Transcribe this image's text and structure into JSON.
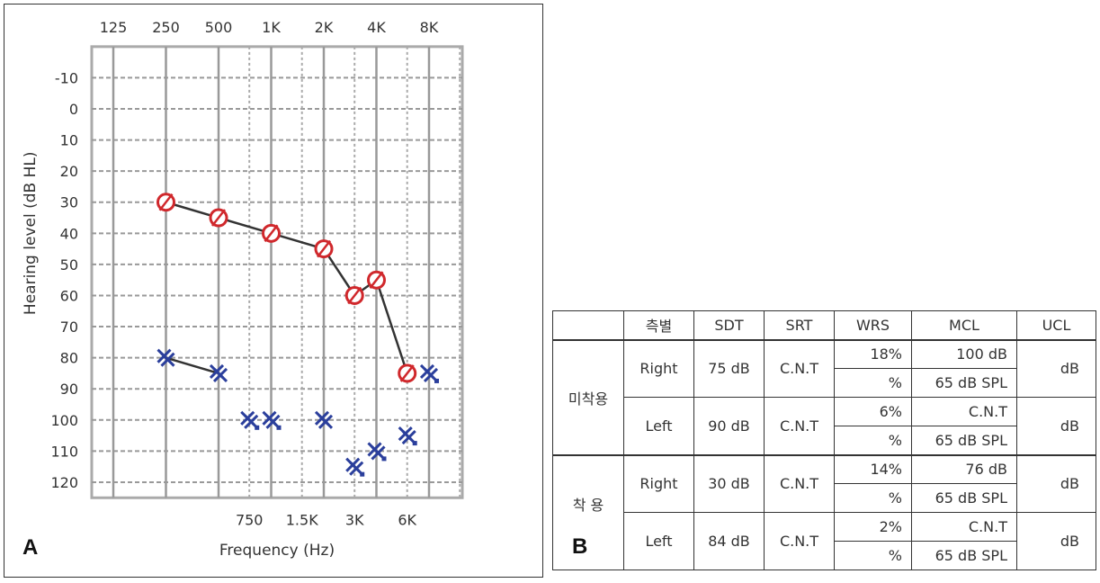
{
  "panel_a_label": "A",
  "panel_b_label": "B",
  "chart_data": {
    "type": "scatter",
    "title": "",
    "xlabel": "Frequency (Hz)",
    "ylabel": "Hearing level (dB HL)",
    "x_scale": "log2",
    "y_inverted": true,
    "ylim": [
      -20,
      125
    ],
    "grid": true,
    "top_tick_labels": [
      "125",
      "250",
      "500",
      "1K",
      "2K",
      "4K",
      "8K"
    ],
    "top_ticks_hz": [
      125,
      250,
      500,
      1000,
      2000,
      4000,
      8000
    ],
    "bottom_tick_labels": [
      "750",
      "1.5K",
      "3K",
      "6K"
    ],
    "bottom_ticks_hz": [
      750,
      1500,
      3000,
      6000
    ],
    "y_tick_labels": [
      "-10",
      "0",
      "10",
      "20",
      "30",
      "40",
      "50",
      "60",
      "70",
      "80",
      "90",
      "100",
      "110",
      "120"
    ],
    "y_ticks": [
      -10,
      0,
      10,
      20,
      30,
      40,
      50,
      60,
      70,
      80,
      90,
      100,
      110,
      120
    ],
    "series": [
      {
        "symbol": "circle-slash",
        "color": "#d0282c",
        "connected": true,
        "points": [
          [
            250,
            30
          ],
          [
            500,
            35
          ],
          [
            1000,
            40
          ],
          [
            2000,
            45
          ],
          [
            3000,
            60
          ],
          [
            4000,
            55
          ],
          [
            6000,
            85
          ]
        ]
      },
      {
        "symbol": "double-x",
        "color": "#2b3f9c",
        "connected_pairs": [
          [
            250,
            500
          ]
        ],
        "points": [
          [
            250,
            80,
            false
          ],
          [
            500,
            85,
            false
          ],
          [
            750,
            100,
            true
          ],
          [
            1000,
            100,
            true
          ],
          [
            2000,
            100,
            false
          ],
          [
            3000,
            115,
            true
          ],
          [
            4000,
            110,
            true
          ],
          [
            6000,
            105,
            true
          ],
          [
            8000,
            85,
            true
          ]
        ]
      }
    ]
  },
  "table": {
    "headers": [
      "",
      "측별",
      "SDT",
      "SRT",
      "WRS",
      "MCL",
      "UCL"
    ],
    "groups": [
      {
        "label": "미착용",
        "rows": [
          {
            "side": "Right",
            "sdt": "75 dB",
            "srt": "C.N.T",
            "wrs": [
              "18%",
              "%"
            ],
            "mcl": [
              "100 dB",
              "65 dB SPL"
            ],
            "ucl": "dB"
          },
          {
            "side": "Left",
            "sdt": "90 dB",
            "srt": "C.N.T",
            "wrs": [
              "6%",
              "%"
            ],
            "mcl": [
              "C.N.T",
              "65 dB SPL"
            ],
            "ucl": "dB"
          }
        ]
      },
      {
        "label": "착 용",
        "rows": [
          {
            "side": "Right",
            "sdt": "30 dB",
            "srt": "C.N.T",
            "wrs": [
              "14%",
              "%"
            ],
            "mcl": [
              "76 dB",
              "65 dB SPL"
            ],
            "ucl": "dB"
          },
          {
            "side": "Left",
            "sdt": "84 dB",
            "srt": "C.N.T",
            "wrs": [
              "2%",
              "%"
            ],
            "mcl": [
              "C.N.T",
              "65 dB SPL"
            ],
            "ucl": "dB"
          }
        ]
      }
    ]
  }
}
